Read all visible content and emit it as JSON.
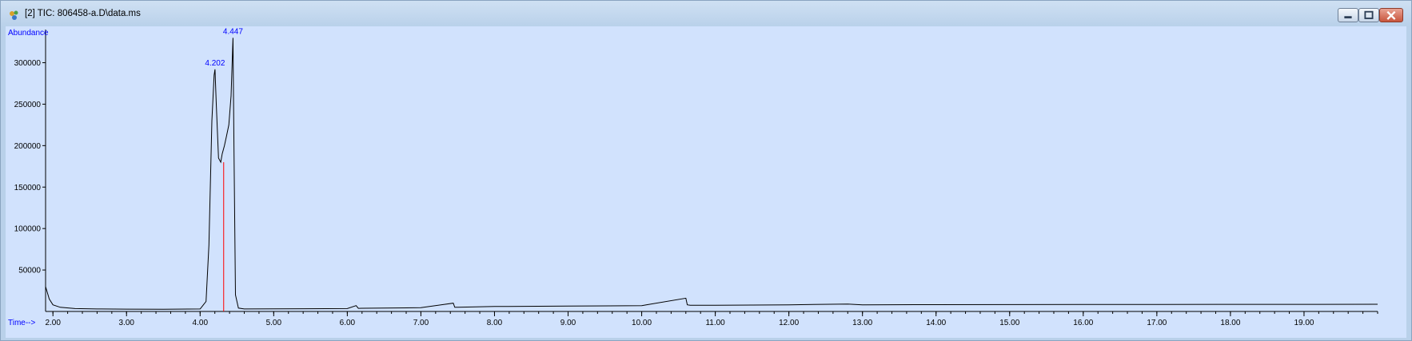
{
  "window": {
    "title": "[2] TIC: 806458-a.D\\data.ms",
    "icon": "chromatogram-app-icon",
    "controls": [
      "minimize-icon",
      "restore-icon",
      "close-icon"
    ]
  },
  "colors": {
    "plot_background": "#d1e2fd",
    "trace": "#000000",
    "peak_label": "#0000ff",
    "axis_label": "#0000ff",
    "integration_marker": "#ff0000"
  },
  "chart_data": {
    "type": "line",
    "title": "",
    "xlabel": "Time-->",
    "ylabel": "Abundance",
    "xlim": [
      1.9,
      20.0
    ],
    "ylim": [
      0,
      340000
    ],
    "x_ticks": [
      "2.00",
      "3.00",
      "4.00",
      "5.00",
      "6.00",
      "7.00",
      "8.00",
      "9.00",
      "10.00",
      "11.00",
      "12.00",
      "13.00",
      "14.00",
      "15.00",
      "16.00",
      "17.00",
      "18.00",
      "19.00"
    ],
    "y_ticks": [
      "50000",
      "100000",
      "150000",
      "200000",
      "250000",
      "300000"
    ],
    "grid": false,
    "series": [
      {
        "x": [
          1.9,
          1.95,
          2.0,
          2.1,
          2.3,
          2.6,
          3.0,
          3.5,
          4.0,
          4.08,
          4.12,
          4.16,
          4.19,
          4.202,
          4.22,
          4.25,
          4.28,
          4.3,
          4.33,
          4.36,
          4.39,
          4.42,
          4.447,
          4.46,
          4.48,
          4.52,
          4.6,
          5.0,
          6.0,
          6.12,
          6.15,
          6.2,
          7.0,
          7.44,
          7.46,
          7.5,
          8.0,
          9.0,
          10.0,
          10.6,
          10.62,
          10.66,
          11.0,
          12.0,
          12.8,
          13.0,
          14.0,
          15.0,
          16.0,
          17.0,
          18.0,
          19.0,
          20.0
        ],
        "y": [
          30000,
          15000,
          8000,
          5000,
          3500,
          3000,
          2800,
          2700,
          3000,
          12000,
          80000,
          230000,
          285000,
          292000,
          250000,
          185000,
          180000,
          190000,
          200000,
          212000,
          225000,
          260000,
          330000,
          200000,
          20000,
          4000,
          3000,
          3200,
          3500,
          7000,
          3800,
          3900,
          4500,
          10000,
          5000,
          5000,
          6000,
          6500,
          7000,
          16000,
          8000,
          7500,
          7500,
          8000,
          9000,
          8000,
          8200,
          8300,
          8400,
          8500,
          8600,
          8600,
          8700
        ]
      }
    ],
    "peak_labels": [
      {
        "x": 4.202,
        "y": 292000,
        "label": "4.202"
      },
      {
        "x": 4.447,
        "y": 330000,
        "label": "4.447"
      }
    ],
    "integration_marker": {
      "x": 4.32,
      "y": 180000
    }
  }
}
